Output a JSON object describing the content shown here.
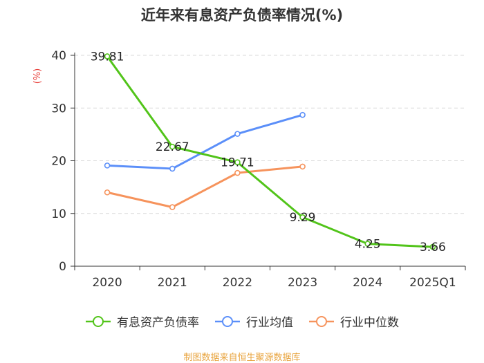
{
  "chart_data": {
    "type": "line",
    "title": "近年来有息资产负债率情况(%)",
    "ylabel": "(%)",
    "xlabel": "",
    "ylim": [
      0,
      40
    ],
    "yticks": [
      0,
      10,
      20,
      30,
      40
    ],
    "categories": [
      "2020",
      "2021",
      "2022",
      "2023",
      "2024",
      "2025Q1"
    ],
    "grid": true,
    "legend_position": "bottom",
    "series": [
      {
        "name": "有息资产负债率",
        "color": "#52c41a",
        "values": [
          39.81,
          22.67,
          19.71,
          9.29,
          4.25,
          3.66
        ],
        "show_labels": true
      },
      {
        "name": "行业均值",
        "color": "#5b8ff9",
        "values": [
          19.1,
          18.5,
          25.1,
          28.7,
          null,
          null
        ],
        "show_labels": false
      },
      {
        "name": "行业中位数",
        "color": "#f6935c",
        "values": [
          14.0,
          11.2,
          17.7,
          18.9,
          null,
          null
        ],
        "show_labels": false
      }
    ]
  },
  "source": "制图数据来自恒生聚源数据库",
  "colors": {
    "ylabel": "#e8413c",
    "source": "#e8a33c",
    "grid": "#d9d9d9",
    "axis": "#333333"
  }
}
